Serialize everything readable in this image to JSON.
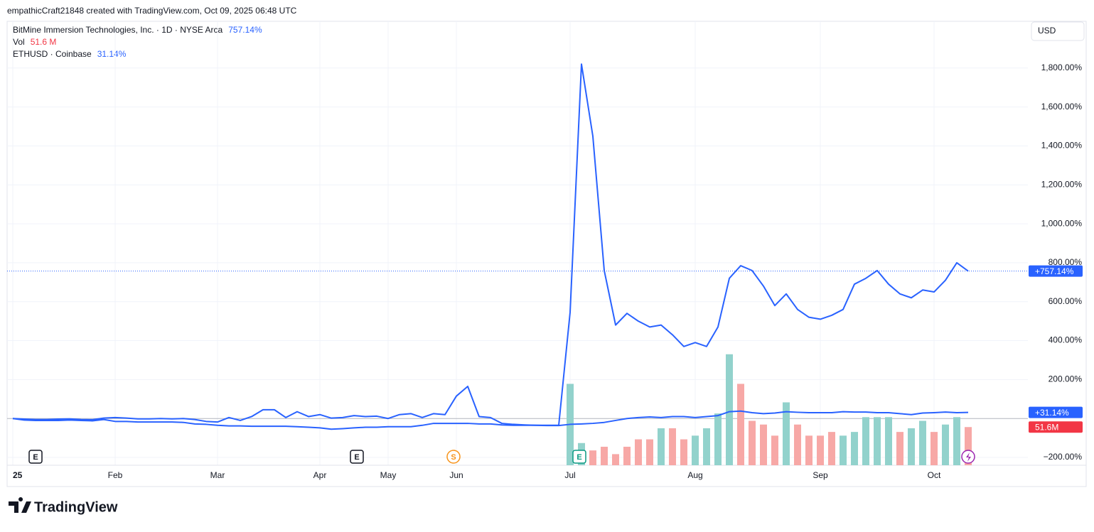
{
  "header": "empathicCraft21848 created with TradingView.com, Oct 09, 2025 06:48 UTC",
  "currency": "USD",
  "logo": "TradingView",
  "events": [
    "E",
    "E",
    "S",
    "E"
  ],
  "chart_data": {
    "type": "line",
    "categories": [
      "25",
      null,
      null,
      null,
      null,
      null,
      null,
      null,
      null,
      "Feb",
      null,
      null,
      null,
      null,
      null,
      null,
      null,
      null,
      "Mar",
      null,
      null,
      null,
      null,
      null,
      null,
      null,
      null,
      "Apr",
      null,
      null,
      null,
      null,
      null,
      "May",
      null,
      null,
      null,
      null,
      null,
      "Jun",
      null,
      null,
      null,
      null,
      null,
      null,
      null,
      null,
      null,
      "Jul",
      null,
      null,
      null,
      null,
      null,
      null,
      null,
      null,
      null,
      null,
      "Aug",
      null,
      null,
      null,
      null,
      null,
      null,
      null,
      null,
      null,
      null,
      "Sep",
      null,
      null,
      null,
      null,
      null,
      null,
      null,
      null,
      null,
      "Oct",
      null,
      null,
      null
    ],
    "ylim": [
      -240,
      2040
    ],
    "yticks": [
      {
        "value": 1800,
        "label": "1,800.00%"
      },
      {
        "value": 1600,
        "label": "1,600.00%"
      },
      {
        "value": 1400,
        "label": "1,400.00%"
      },
      {
        "value": 1200,
        "label": "1,200.00%"
      },
      {
        "value": 1000,
        "label": "1,000.00%"
      },
      {
        "value": 800,
        "label": "800.00%"
      },
      {
        "value": 600,
        "label": "600.00%"
      },
      {
        "value": 400,
        "label": "400.00%"
      },
      {
        "value": 200,
        "label": "200.00%"
      },
      {
        "value": -200,
        "label": "−200.00%"
      }
    ],
    "y2lim": [
      0,
      600
    ],
    "grid": true,
    "series": [
      {
        "name": "BitMine Immersion Technologies, Inc. · 1D · NYSE Arca",
        "color": "#2962ff",
        "legend_value": "757.14%",
        "badge": "+757.14%",
        "values": [
          0,
          -3,
          -5,
          -5,
          -3,
          -2,
          -5,
          -6,
          2,
          5,
          2,
          -2,
          -2,
          0,
          -2,
          0,
          -5,
          -15,
          -18,
          5,
          -10,
          10,
          45,
          45,
          5,
          35,
          10,
          20,
          2,
          5,
          15,
          10,
          12,
          0,
          20,
          25,
          5,
          25,
          20,
          115,
          165,
          10,
          5,
          -25,
          -30,
          -33,
          -35,
          -35,
          -35,
          545,
          1820,
          1450,
          760,
          480,
          540,
          500,
          470,
          480,
          430,
          370,
          390,
          370,
          470,
          720,
          785,
          760,
          680,
          580,
          640,
          560,
          520,
          510,
          530,
          560,
          690,
          720,
          760,
          690,
          640,
          620,
          660,
          650,
          710,
          800,
          757.14
        ]
      },
      {
        "name": "Vol",
        "type": "bar",
        "axis": "y2",
        "color": "#f23645",
        "legend_value": "51.6 M",
        "badge": "51.6M",
        "values": [
          null,
          null,
          null,
          null,
          null,
          null,
          null,
          null,
          null,
          null,
          null,
          null,
          null,
          null,
          null,
          null,
          null,
          null,
          null,
          null,
          null,
          null,
          null,
          null,
          null,
          null,
          null,
          null,
          null,
          null,
          null,
          null,
          null,
          null,
          null,
          null,
          null,
          null,
          null,
          null,
          null,
          null,
          null,
          null,
          null,
          null,
          null,
          null,
          null,
          110,
          30,
          20,
          25,
          15,
          25,
          35,
          35,
          50,
          50,
          35,
          40,
          50,
          70,
          150,
          110,
          60,
          55,
          40,
          85,
          55,
          40,
          40,
          45,
          40,
          45,
          65,
          65,
          65,
          45,
          50,
          60,
          45,
          55,
          65,
          51.6
        ],
        "colors": [
          null,
          null,
          null,
          null,
          null,
          null,
          null,
          null,
          null,
          null,
          null,
          null,
          null,
          null,
          null,
          null,
          null,
          null,
          null,
          null,
          null,
          null,
          null,
          null,
          null,
          null,
          null,
          null,
          null,
          null,
          null,
          null,
          null,
          null,
          null,
          null,
          null,
          null,
          null,
          null,
          null,
          null,
          null,
          null,
          null,
          null,
          null,
          null,
          null,
          "#92d2cc",
          "#92d2cc",
          "#f7a8a6",
          "#f7a8a6",
          "#f7a8a6",
          "#f7a8a6",
          "#f7a8a6",
          "#f7a8a6",
          "#92d2cc",
          "#f7a8a6",
          "#f7a8a6",
          "#92d2cc",
          "#92d2cc",
          "#92d2cc",
          "#92d2cc",
          "#f7a8a6",
          "#f7a8a6",
          "#f7a8a6",
          "#f7a8a6",
          "#92d2cc",
          "#f7a8a6",
          "#f7a8a6",
          "#f7a8a6",
          "#f7a8a6",
          "#92d2cc",
          "#92d2cc",
          "#92d2cc",
          "#92d2cc",
          "#92d2cc",
          "#f7a8a6",
          "#92d2cc",
          "#92d2cc",
          "#f7a8a6",
          "#92d2cc",
          "#92d2cc",
          "#f7a8a6"
        ]
      },
      {
        "name": "ETHUSD · Coinbase",
        "color": "#2962ff",
        "legend_value": "31.14%",
        "badge": "+31.14%",
        "values": [
          0,
          -8,
          -10,
          -10,
          -10,
          -8,
          -10,
          -12,
          -5,
          -15,
          -15,
          -18,
          -18,
          -18,
          -18,
          -20,
          -28,
          -30,
          -35,
          -38,
          -38,
          -40,
          -40,
          -40,
          -40,
          -42,
          -45,
          -48,
          -55,
          -52,
          -48,
          -45,
          -45,
          -42,
          -42,
          -42,
          -35,
          -25,
          -25,
          -25,
          -25,
          -28,
          -28,
          -33,
          -35,
          -35,
          -35,
          -36,
          -36,
          -30,
          -28,
          -25,
          -20,
          -10,
          0,
          5,
          8,
          5,
          10,
          10,
          5,
          10,
          15,
          35,
          38,
          30,
          25,
          28,
          35,
          32,
          30,
          30,
          30,
          35,
          33,
          33,
          30,
          30,
          25,
          20,
          28,
          30,
          33,
          30,
          31.14
        ]
      }
    ]
  }
}
